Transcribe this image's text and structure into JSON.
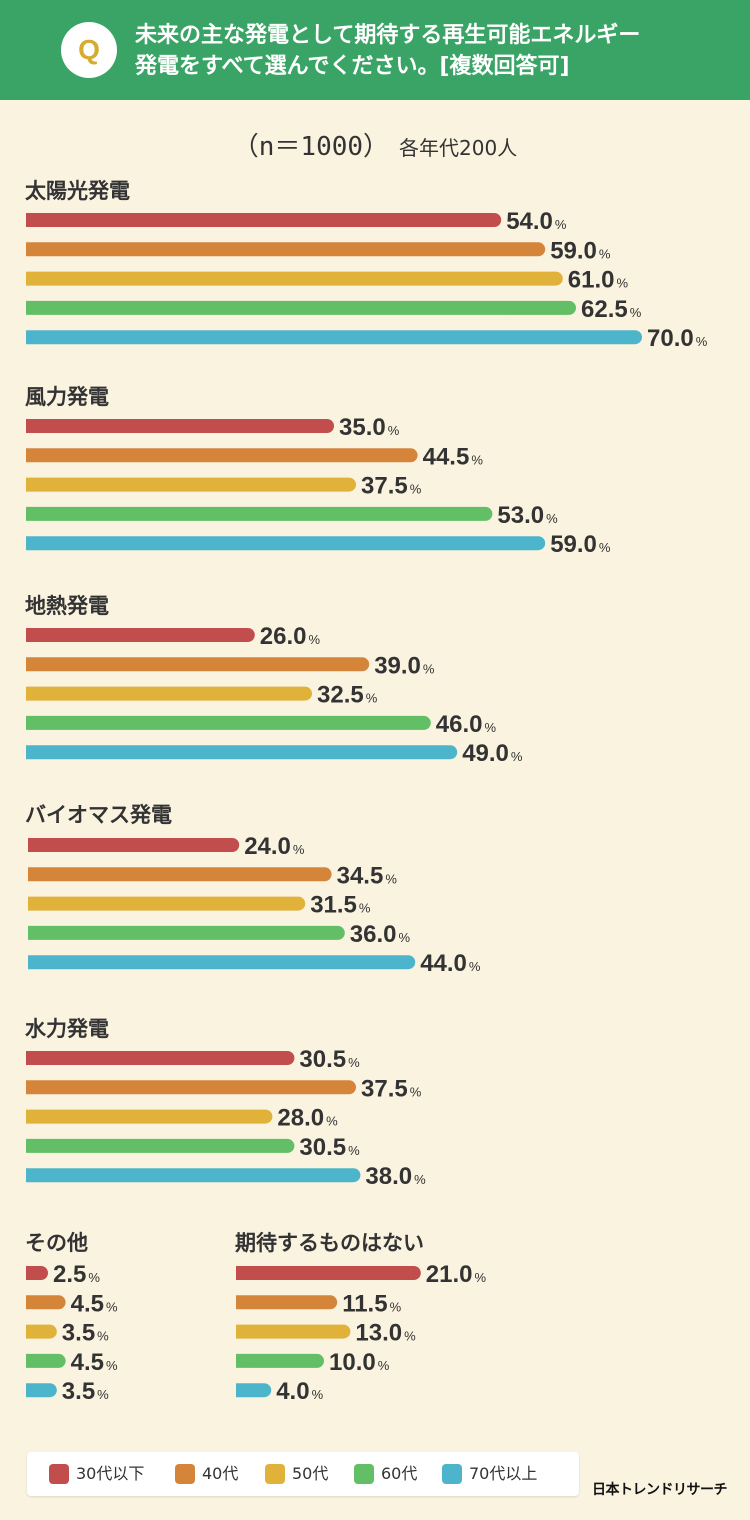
{
  "header": {
    "badge": "Q",
    "question_line1": "未来の主な発電として期待する再生可能エネルギー",
    "question_line2": "発電をすべて選んでください。[複数回答可]"
  },
  "sample": {
    "n_text": "（n＝1000）",
    "per_group": "各年代200人"
  },
  "legend": {
    "items": [
      {
        "label": "30代以下",
        "color": "#c14d4d"
      },
      {
        "label": "40代",
        "color": "#d5853a"
      },
      {
        "label": "50代",
        "color": "#e0b23a"
      },
      {
        "label": "60代",
        "color": "#63bf66"
      },
      {
        "label": "70代以上",
        "color": "#4cb5cc"
      }
    ]
  },
  "logo": "日本トレンドリサーチ",
  "chart_data": {
    "type": "bar",
    "orientation": "horizontal",
    "unit": "%",
    "series": [
      {
        "name": "30代以下",
        "color": "#c14d4d"
      },
      {
        "name": "40代",
        "color": "#d5853a"
      },
      {
        "name": "50代",
        "color": "#e0b23a"
      },
      {
        "name": "60代",
        "color": "#63bf66"
      },
      {
        "name": "70代以上",
        "color": "#4cb5cc"
      }
    ],
    "groups": [
      {
        "label": "太陽光発電",
        "values": [
          "54.0",
          "59.0",
          "61.0",
          "62.5",
          "70.0"
        ]
      },
      {
        "label": "風力発電",
        "values": [
          "35.0",
          "44.5",
          "37.5",
          "53.0",
          "59.0"
        ]
      },
      {
        "label": "地熱発電",
        "values": [
          "26.0",
          "39.0",
          "32.5",
          "46.0",
          "49.0"
        ]
      },
      {
        "label": "バイオマス発電",
        "values": [
          "24.0",
          "34.5",
          "31.5",
          "36.0",
          "44.0"
        ]
      },
      {
        "label": "水力発電",
        "values": [
          "30.5",
          "37.5",
          "28.0",
          "30.5",
          "38.0"
        ]
      },
      {
        "label": "その他",
        "values": [
          "2.5",
          "4.5",
          "3.5",
          "4.5",
          "3.5"
        ]
      },
      {
        "label": "期待するものはない",
        "values": [
          "21.0",
          "11.5",
          "13.0",
          "10.0",
          "4.0"
        ]
      }
    ]
  }
}
